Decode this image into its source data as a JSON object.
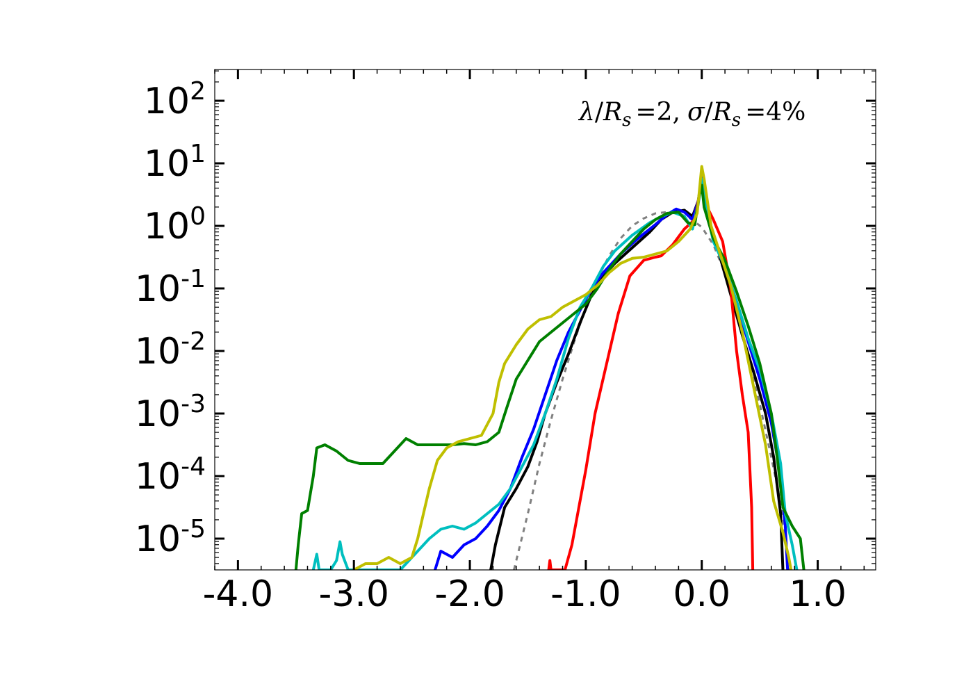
{
  "chart_data": {
    "type": "line",
    "title": "",
    "annotation": "λ/R_s =2, σ/R_s =4%",
    "annotation_parts": {
      "lambda": "λ",
      "slash1": "/",
      "R1": "R",
      "s1": "s",
      "eq1": "=2,",
      "sigma": "σ",
      "slash2": "/",
      "R2": "R",
      "s2": "s",
      "eq2": "=4%"
    },
    "xlabel": "",
    "ylabel": "",
    "xlim": [
      -4.2,
      1.5
    ],
    "ylim_log10": [
      -5.5,
      2.5
    ],
    "yscale": "log",
    "x_tick_values": [
      -4,
      -3,
      -2,
      -1,
      0,
      1
    ],
    "x_tick_labels": [
      "-4.0",
      "-3.0",
      "-2.0",
      "-1.0",
      "0.0",
      "1.0"
    ],
    "y_tick_exponents": [
      -5,
      -4,
      -3,
      -2,
      -1,
      0,
      1,
      2
    ],
    "y_tick_labels": [
      {
        "base": "10",
        "exp": "-5"
      },
      {
        "base": "10",
        "exp": "-4"
      },
      {
        "base": "10",
        "exp": "-3"
      },
      {
        "base": "10",
        "exp": "-2"
      },
      {
        "base": "10",
        "exp": "-1"
      },
      {
        "base": "10",
        "exp": "0"
      },
      {
        "base": "10",
        "exp": "1"
      },
      {
        "base": "10",
        "exp": "2"
      }
    ],
    "series": [
      {
        "name": "reference-gaussian",
        "color": "#808080",
        "dashed": true,
        "points": [
          [
            -1.62,
            -5.5
          ],
          [
            -1.5,
            -4.6
          ],
          [
            -1.4,
            -3.8
          ],
          [
            -1.3,
            -3.1
          ],
          [
            -1.2,
            -2.45
          ],
          [
            -1.1,
            -1.85
          ],
          [
            -1.0,
            -1.3
          ],
          [
            -0.9,
            -0.85
          ],
          [
            -0.8,
            -0.48
          ],
          [
            -0.7,
            -0.2
          ],
          [
            -0.6,
            -0.0
          ],
          [
            -0.5,
            0.12
          ],
          [
            -0.4,
            0.2
          ],
          [
            -0.3,
            0.22
          ],
          [
            -0.2,
            0.2
          ],
          [
            -0.1,
            0.12
          ],
          [
            0.0,
            -0.02
          ],
          [
            0.1,
            -0.3
          ],
          [
            0.2,
            -0.75
          ],
          [
            0.3,
            -1.35
          ],
          [
            0.4,
            -2.05
          ],
          [
            0.5,
            -2.85
          ],
          [
            0.6,
            -3.7
          ],
          [
            0.7,
            -4.6
          ],
          [
            0.75,
            -5.5
          ]
        ]
      },
      {
        "name": "black",
        "color": "#000000",
        "dashed": false,
        "points": [
          [
            -1.82,
            -5.5
          ],
          [
            -1.78,
            -5.1
          ],
          [
            -1.7,
            -4.5
          ],
          [
            -1.6,
            -4.2
          ],
          [
            -1.5,
            -3.85
          ],
          [
            -1.42,
            -3.45
          ],
          [
            -1.35,
            -3.0
          ],
          [
            -1.25,
            -2.5
          ],
          [
            -1.15,
            -2.05
          ],
          [
            -1.05,
            -1.55
          ],
          [
            -0.95,
            -1.1
          ],
          [
            -0.85,
            -0.8
          ],
          [
            -0.75,
            -0.6
          ],
          [
            -0.6,
            -0.35
          ],
          [
            -0.45,
            -0.1
          ],
          [
            -0.35,
            0.1
          ],
          [
            -0.25,
            0.22
          ],
          [
            -0.15,
            0.25
          ],
          [
            -0.08,
            0.15
          ],
          [
            -0.03,
            0.4
          ],
          [
            0.0,
            0.78
          ],
          [
            0.03,
            0.4
          ],
          [
            0.08,
            -0.05
          ],
          [
            0.15,
            -0.45
          ],
          [
            0.25,
            -1.1
          ],
          [
            0.35,
            -1.75
          ],
          [
            0.45,
            -2.35
          ],
          [
            0.55,
            -3.0
          ],
          [
            0.62,
            -3.7
          ],
          [
            0.68,
            -4.6
          ],
          [
            0.7,
            -5.5
          ]
        ]
      },
      {
        "name": "blue",
        "color": "#0000ff",
        "dashed": false,
        "points": [
          [
            -2.3,
            -5.5
          ],
          [
            -2.25,
            -5.2
          ],
          [
            -2.15,
            -5.3
          ],
          [
            -2.05,
            -5.1
          ],
          [
            -1.95,
            -5.0
          ],
          [
            -1.85,
            -4.8
          ],
          [
            -1.75,
            -4.55
          ],
          [
            -1.65,
            -4.2
          ],
          [
            -1.55,
            -3.7
          ],
          [
            -1.45,
            -3.25
          ],
          [
            -1.35,
            -2.7
          ],
          [
            -1.25,
            -2.15
          ],
          [
            -1.15,
            -1.7
          ],
          [
            -1.05,
            -1.35
          ],
          [
            -0.95,
            -1.0
          ],
          [
            -0.85,
            -0.75
          ],
          [
            -0.7,
            -0.45
          ],
          [
            -0.55,
            -0.2
          ],
          [
            -0.4,
            0.02
          ],
          [
            -0.3,
            0.18
          ],
          [
            -0.22,
            0.27
          ],
          [
            -0.15,
            0.22
          ],
          [
            -0.08,
            0.1
          ],
          [
            -0.03,
            0.4
          ],
          [
            0.0,
            0.78
          ],
          [
            0.03,
            0.4
          ],
          [
            0.1,
            -0.2
          ],
          [
            0.2,
            -0.65
          ],
          [
            0.3,
            -1.25
          ],
          [
            0.4,
            -1.85
          ],
          [
            0.5,
            -2.45
          ],
          [
            0.6,
            -3.15
          ],
          [
            0.68,
            -4.0
          ],
          [
            0.72,
            -4.8
          ],
          [
            0.74,
            -5.5
          ]
        ]
      },
      {
        "name": "red",
        "color": "#ff0000",
        "dashed": false,
        "points": [
          [
            -1.32,
            -5.5
          ],
          [
            -1.31,
            -5.35
          ],
          [
            -1.3,
            -5.5
          ],
          [
            -1.18,
            -5.5
          ],
          [
            -1.12,
            -5.1
          ],
          [
            -1.06,
            -4.5
          ],
          [
            -1.0,
            -3.9
          ],
          [
            -0.92,
            -3.0
          ],
          [
            -0.82,
            -2.2
          ],
          [
            -0.72,
            -1.4
          ],
          [
            -0.62,
            -0.8
          ],
          [
            -0.5,
            -0.55
          ],
          [
            -0.4,
            -0.5
          ],
          [
            -0.35,
            -0.48
          ],
          [
            -0.25,
            -0.3
          ],
          [
            -0.15,
            -0.05
          ],
          [
            -0.06,
            0.1
          ],
          [
            -0.02,
            0.5
          ],
          [
            0.0,
            0.75
          ],
          [
            0.02,
            0.4
          ],
          [
            0.1,
            0.1
          ],
          [
            0.18,
            -0.25
          ],
          [
            0.25,
            -1.0
          ],
          [
            0.3,
            -2.0
          ],
          [
            0.35,
            -2.7
          ],
          [
            0.4,
            -3.3
          ],
          [
            0.43,
            -4.5
          ],
          [
            0.44,
            -5.5
          ]
        ]
      },
      {
        "name": "cyan",
        "color": "#00bfbf",
        "dashed": false,
        "points": [
          [
            -3.35,
            -5.5
          ],
          [
            -3.32,
            -5.25
          ],
          [
            -3.3,
            -5.5
          ],
          [
            -3.2,
            -5.5
          ],
          [
            -3.15,
            -5.35
          ],
          [
            -3.12,
            -5.05
          ],
          [
            -3.1,
            -5.25
          ],
          [
            -3.05,
            -5.5
          ],
          [
            -2.6,
            -5.5
          ],
          [
            -2.45,
            -5.2
          ],
          [
            -2.35,
            -5.0
          ],
          [
            -2.25,
            -4.85
          ],
          [
            -2.15,
            -4.8
          ],
          [
            -2.05,
            -4.85
          ],
          [
            -1.95,
            -4.75
          ],
          [
            -1.85,
            -4.6
          ],
          [
            -1.75,
            -4.45
          ],
          [
            -1.65,
            -4.2
          ],
          [
            -1.55,
            -3.85
          ],
          [
            -1.45,
            -3.5
          ],
          [
            -1.35,
            -3.0
          ],
          [
            -1.25,
            -2.45
          ],
          [
            -1.15,
            -1.8
          ],
          [
            -1.05,
            -1.3
          ],
          [
            -0.95,
            -1.0
          ],
          [
            -0.85,
            -0.65
          ],
          [
            -0.75,
            -0.4
          ],
          [
            -0.6,
            -0.15
          ],
          [
            -0.45,
            0.05
          ],
          [
            -0.35,
            0.15
          ],
          [
            -0.25,
            0.22
          ],
          [
            -0.15,
            0.15
          ],
          [
            -0.08,
            -0.05
          ],
          [
            -0.03,
            0.35
          ],
          [
            0.0,
            0.75
          ],
          [
            0.03,
            0.35
          ],
          [
            0.1,
            -0.25
          ],
          [
            0.2,
            -0.65
          ],
          [
            0.3,
            -1.2
          ],
          [
            0.4,
            -1.8
          ],
          [
            0.5,
            -2.3
          ],
          [
            0.6,
            -3.0
          ],
          [
            0.68,
            -3.8
          ],
          [
            0.72,
            -4.6
          ],
          [
            0.78,
            -5.1
          ],
          [
            0.82,
            -5.5
          ]
        ]
      },
      {
        "name": "green",
        "color": "#008000",
        "dashed": false,
        "points": [
          [
            -3.5,
            -5.5
          ],
          [
            -3.48,
            -5.1
          ],
          [
            -3.45,
            -4.6
          ],
          [
            -3.4,
            -4.55
          ],
          [
            -3.35,
            -4.0
          ],
          [
            -3.32,
            -3.55
          ],
          [
            -3.25,
            -3.5
          ],
          [
            -3.15,
            -3.6
          ],
          [
            -3.05,
            -3.75
          ],
          [
            -2.95,
            -3.8
          ],
          [
            -2.85,
            -3.8
          ],
          [
            -2.75,
            -3.8
          ],
          [
            -2.65,
            -3.6
          ],
          [
            -2.55,
            -3.4
          ],
          [
            -2.45,
            -3.5
          ],
          [
            -2.35,
            -3.5
          ],
          [
            -2.25,
            -3.5
          ],
          [
            -2.15,
            -3.5
          ],
          [
            -2.05,
            -3.48
          ],
          [
            -1.95,
            -3.5
          ],
          [
            -1.85,
            -3.45
          ],
          [
            -1.75,
            -3.3
          ],
          [
            -1.68,
            -2.9
          ],
          [
            -1.6,
            -2.45
          ],
          [
            -1.5,
            -2.15
          ],
          [
            -1.4,
            -1.85
          ],
          [
            -1.3,
            -1.7
          ],
          [
            -1.2,
            -1.55
          ],
          [
            -1.1,
            -1.4
          ],
          [
            -1.0,
            -1.25
          ],
          [
            -0.9,
            -1.0
          ],
          [
            -0.8,
            -0.7
          ],
          [
            -0.7,
            -0.45
          ],
          [
            -0.6,
            -0.25
          ],
          [
            -0.5,
            -0.05
          ],
          [
            -0.4,
            0.1
          ],
          [
            -0.3,
            0.2
          ],
          [
            -0.2,
            0.22
          ],
          [
            -0.12,
            0.05
          ],
          [
            -0.06,
            0.02
          ],
          [
            -0.02,
            0.5
          ],
          [
            0.0,
            0.65
          ],
          [
            0.02,
            0.3
          ],
          [
            0.1,
            -0.2
          ],
          [
            0.2,
            -0.55
          ],
          [
            0.3,
            -1.05
          ],
          [
            0.4,
            -1.6
          ],
          [
            0.5,
            -2.2
          ],
          [
            0.6,
            -3.0
          ],
          [
            0.65,
            -3.7
          ],
          [
            0.7,
            -4.5
          ],
          [
            0.78,
            -4.8
          ],
          [
            0.85,
            -5.0
          ],
          [
            0.88,
            -5.5
          ]
        ]
      },
      {
        "name": "yellow",
        "color": "#bfbf00",
        "dashed": false,
        "points": [
          [
            -3.0,
            -5.5
          ],
          [
            -2.9,
            -5.4
          ],
          [
            -2.8,
            -5.4
          ],
          [
            -2.7,
            -5.3
          ],
          [
            -2.6,
            -5.4
          ],
          [
            -2.5,
            -5.3
          ],
          [
            -2.45,
            -5.0
          ],
          [
            -2.4,
            -4.6
          ],
          [
            -2.35,
            -4.2
          ],
          [
            -2.28,
            -3.75
          ],
          [
            -2.2,
            -3.55
          ],
          [
            -2.1,
            -3.45
          ],
          [
            -2.0,
            -3.4
          ],
          [
            -1.9,
            -3.35
          ],
          [
            -1.8,
            -3.0
          ],
          [
            -1.75,
            -2.5
          ],
          [
            -1.7,
            -2.2
          ],
          [
            -1.6,
            -1.9
          ],
          [
            -1.5,
            -1.65
          ],
          [
            -1.4,
            -1.5
          ],
          [
            -1.3,
            -1.45
          ],
          [
            -1.2,
            -1.3
          ],
          [
            -1.1,
            -1.2
          ],
          [
            -1.0,
            -1.1
          ],
          [
            -0.9,
            -0.95
          ],
          [
            -0.8,
            -0.75
          ],
          [
            -0.7,
            -0.6
          ],
          [
            -0.6,
            -0.52
          ],
          [
            -0.5,
            -0.5
          ],
          [
            -0.4,
            -0.45
          ],
          [
            -0.3,
            -0.4
          ],
          [
            -0.2,
            -0.25
          ],
          [
            -0.1,
            -0.05
          ],
          [
            -0.04,
            0.2
          ],
          [
            0.0,
            0.95
          ],
          [
            0.02,
            0.75
          ],
          [
            0.08,
            0.0
          ],
          [
            0.15,
            -0.4
          ],
          [
            0.25,
            -0.95
          ],
          [
            0.35,
            -1.7
          ],
          [
            0.45,
            -2.6
          ],
          [
            0.55,
            -3.5
          ],
          [
            0.62,
            -4.4
          ],
          [
            0.7,
            -4.9
          ],
          [
            0.75,
            -5.3
          ],
          [
            0.77,
            -5.5
          ]
        ]
      }
    ]
  }
}
